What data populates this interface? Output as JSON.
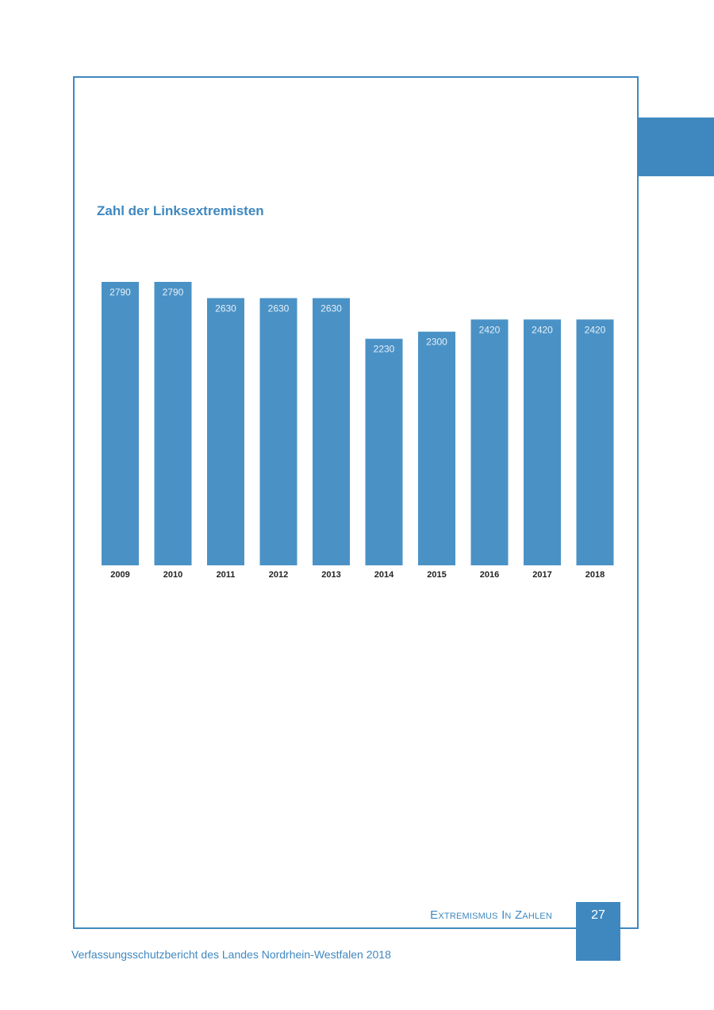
{
  "page": {
    "section_title": "Extremismus In Zahlen",
    "page_number": "27",
    "document_title": "Verfassungsschutzbericht des Landes Nordrhein-Westfalen 2018",
    "accent_color": "#3f88bf"
  },
  "chart_data": {
    "type": "bar",
    "title": "Zahl der Linksextremisten",
    "xlabel": "",
    "ylabel": "",
    "categories": [
      "2009",
      "2010",
      "2011",
      "2012",
      "2013",
      "2014",
      "2015",
      "2016",
      "2017",
      "2018"
    ],
    "values": [
      2790,
      2790,
      2630,
      2630,
      2630,
      2230,
      2300,
      2420,
      2420,
      2420
    ],
    "data_labels": [
      "2790",
      "2790",
      "2630",
      "2630",
      "2630",
      "2230",
      "2300",
      "2420",
      "2420",
      "2420"
    ],
    "ylim": [
      0,
      2790
    ],
    "grid": false,
    "bar_color": "#4a92c6"
  }
}
